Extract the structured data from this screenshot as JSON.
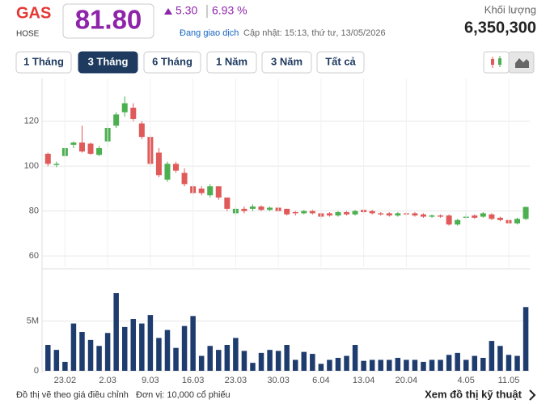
{
  "header": {
    "symbol": "GAS",
    "exchange": "HOSE",
    "price": "81.80",
    "change": "5.30",
    "change_pct": "6.93 %",
    "status": "Đang giao dịch",
    "updated": "Cập nhật: 15:13, thứ tư, 13/05/2026",
    "volume_label": "Khối lượng",
    "volume": "6,350,300"
  },
  "tabs": [
    "1 Tháng",
    "3 Tháng",
    "6 Tháng",
    "1 Năm",
    "3 Năm",
    "Tất cả"
  ],
  "active_tab": 1,
  "chart_data": [
    {
      "type": "candlestick",
      "up_color": "#4caf50",
      "down_color": "#e05a5a",
      "grid": true,
      "ylim": [
        55,
        139
      ],
      "yticks": [
        60,
        80,
        100,
        120
      ],
      "open": [
        105.5,
        100.5,
        104.5,
        109.5,
        110.5,
        110,
        105,
        111,
        118,
        124,
        126,
        119,
        113,
        106,
        94,
        101,
        97,
        91,
        90,
        87,
        91,
        86,
        79,
        81,
        81,
        82,
        80.5,
        81.5,
        81,
        79.5,
        79,
        80,
        79,
        79,
        78,
        79.5,
        78.5,
        80.5,
        80,
        79,
        79,
        78,
        79,
        79,
        78.5,
        77.5,
        78,
        78,
        74,
        77,
        78,
        77.5,
        78.5,
        77,
        76,
        74.5,
        76.5
      ],
      "high": [
        106,
        102,
        108.5,
        111,
        118,
        110.5,
        109,
        119,
        124,
        131,
        128,
        120,
        114,
        108,
        102,
        102,
        99,
        92,
        91,
        92,
        91,
        86,
        82,
        82,
        83,
        82.5,
        82,
        82,
        81,
        80,
        80.5,
        80.5,
        79.5,
        79.5,
        80,
        80,
        80.5,
        81,
        80.5,
        79.5,
        79.5,
        79.5,
        79.5,
        79.5,
        79,
        78.5,
        78.5,
        78.5,
        76.5,
        79,
        78.5,
        79.5,
        79,
        77.5,
        76.5,
        77,
        82
      ],
      "low": [
        100,
        99.5,
        104,
        108,
        106,
        105,
        104.5,
        109,
        117,
        122,
        120,
        112,
        100,
        95,
        93,
        97,
        91,
        87,
        87,
        86,
        85,
        80,
        78,
        79,
        80,
        80,
        80,
        79.5,
        78,
        78,
        78.5,
        78.5,
        76.5,
        77.5,
        77.5,
        78,
        78,
        79,
        78.5,
        78,
        77.5,
        77.5,
        78,
        77.5,
        77,
        77,
        77,
        73.5,
        73.5,
        76.5,
        76.5,
        77,
        76,
        75.5,
        74,
        74,
        76
      ],
      "close": [
        101,
        101,
        108,
        110.5,
        106.5,
        105.5,
        108,
        117,
        123,
        128,
        121,
        113,
        101,
        96,
        101,
        98,
        92,
        88,
        88,
        91,
        86,
        81,
        81,
        80,
        82,
        80.5,
        81.5,
        80,
        78.5,
        79,
        80,
        79,
        77.5,
        78,
        79.5,
        78.5,
        80,
        79.5,
        79,
        78.5,
        78,
        79,
        78.5,
        78,
        77.5,
        78,
        77.5,
        74,
        76,
        77.5,
        77,
        79,
        76.5,
        76,
        74.5,
        76.5,
        81.8
      ]
    },
    {
      "type": "bar",
      "color": "#1f3c6e",
      "grid": true,
      "categories": [
        null,
        null,
        "23.02",
        null,
        null,
        null,
        null,
        "2.03",
        null,
        null,
        null,
        null,
        "9.03",
        null,
        null,
        null,
        null,
        "16.03",
        null,
        null,
        null,
        null,
        "23.03",
        null,
        null,
        null,
        null,
        "30.03",
        null,
        null,
        null,
        null,
        "6.04",
        null,
        null,
        null,
        null,
        "13.04",
        null,
        null,
        null,
        null,
        "20.04",
        null,
        null,
        null,
        null,
        null,
        null,
        "4.05",
        null,
        null,
        null,
        null,
        "11.05",
        null,
        null
      ],
      "values": [
        2600000,
        2100000,
        900000,
        4750000,
        3900000,
        3100000,
        2500000,
        3800000,
        7800000,
        4400000,
        5200000,
        4750000,
        5600000,
        3300000,
        4100000,
        2300000,
        4500000,
        5500000,
        1500000,
        2500000,
        2100000,
        2600000,
        3300000,
        2000000,
        800000,
        1800000,
        2100000,
        2000000,
        2600000,
        1100000,
        1900000,
        1700000,
        700000,
        1100000,
        1300000,
        1500000,
        2600000,
        1000000,
        1100000,
        1100000,
        1100000,
        1300000,
        1100000,
        1100000,
        900000,
        1100000,
        1100000,
        1600000,
        1800000,
        1100000,
        1500000,
        1300000,
        3000000,
        2500000,
        1600000,
        1500000,
        6400000
      ],
      "ylim": [
        0,
        10000000
      ],
      "yticks": [
        0,
        {
          "value": 5000000,
          "label": "5M"
        }
      ]
    }
  ],
  "footer": {
    "note": "Đồ thị vẽ theo giá điều chỉnh",
    "unit": "Đơn vị: 10,000 cổ phiếu",
    "link": "Xem đồ thị kỹ thuật"
  }
}
